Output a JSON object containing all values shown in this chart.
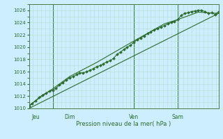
{
  "background_color": "#cceeff",
  "grid_color": "#b8ddd0",
  "line_color": "#2d6a2d",
  "marker_color": "#2d6a2d",
  "xlabel": "Pression niveau de la mer( hPa )",
  "ylim": [
    1010,
    1027
  ],
  "yticks": [
    1010,
    1012,
    1014,
    1016,
    1018,
    1020,
    1022,
    1024,
    1026
  ],
  "xlim": [
    0,
    280
  ],
  "day_labels": [
    "Jeu",
    "Dim",
    "Ven",
    "Sam"
  ],
  "day_positions": [
    10,
    60,
    155,
    220
  ],
  "vline_positions": [
    35,
    155,
    220
  ],
  "series1_x": [
    0,
    5,
    10,
    15,
    20,
    25,
    30,
    35,
    40,
    45,
    50,
    55,
    60,
    65,
    70,
    75,
    80,
    85,
    90,
    95,
    100,
    105,
    110,
    115,
    120,
    125,
    130,
    135,
    140,
    145,
    150,
    155,
    160,
    165,
    170,
    175,
    180,
    185,
    190,
    195,
    200,
    205,
    210,
    215,
    220,
    225,
    230,
    235,
    240,
    245,
    250,
    255,
    260,
    265,
    270,
    275,
    280
  ],
  "series1_y": [
    1010.3,
    1010.8,
    1011.3,
    1011.8,
    1012.2,
    1012.5,
    1012.8,
    1013.0,
    1013.3,
    1013.8,
    1014.2,
    1014.6,
    1015.0,
    1015.2,
    1015.5,
    1015.8,
    1015.8,
    1016.0,
    1016.2,
    1016.5,
    1016.8,
    1017.0,
    1017.3,
    1017.6,
    1017.8,
    1018.2,
    1018.8,
    1019.2,
    1019.6,
    1020.0,
    1020.3,
    1020.8,
    1021.2,
    1021.5,
    1021.8,
    1022.2,
    1022.5,
    1022.8,
    1023.0,
    1023.3,
    1023.5,
    1023.8,
    1024.0,
    1024.2,
    1024.5,
    1025.2,
    1025.5,
    1025.6,
    1025.8,
    1025.9,
    1026.0,
    1026.0,
    1025.8,
    1025.5,
    1025.6,
    1025.3,
    1025.8
  ],
  "series2_x": [
    0,
    280
  ],
  "series2_y": [
    1010.0,
    1025.5
  ],
  "series3_x": [
    0,
    35,
    60,
    100,
    155,
    200,
    220,
    250,
    280
  ],
  "series3_y": [
    1010.5,
    1013.2,
    1015.2,
    1017.5,
    1021.0,
    1023.8,
    1024.5,
    1025.7,
    1025.5
  ]
}
